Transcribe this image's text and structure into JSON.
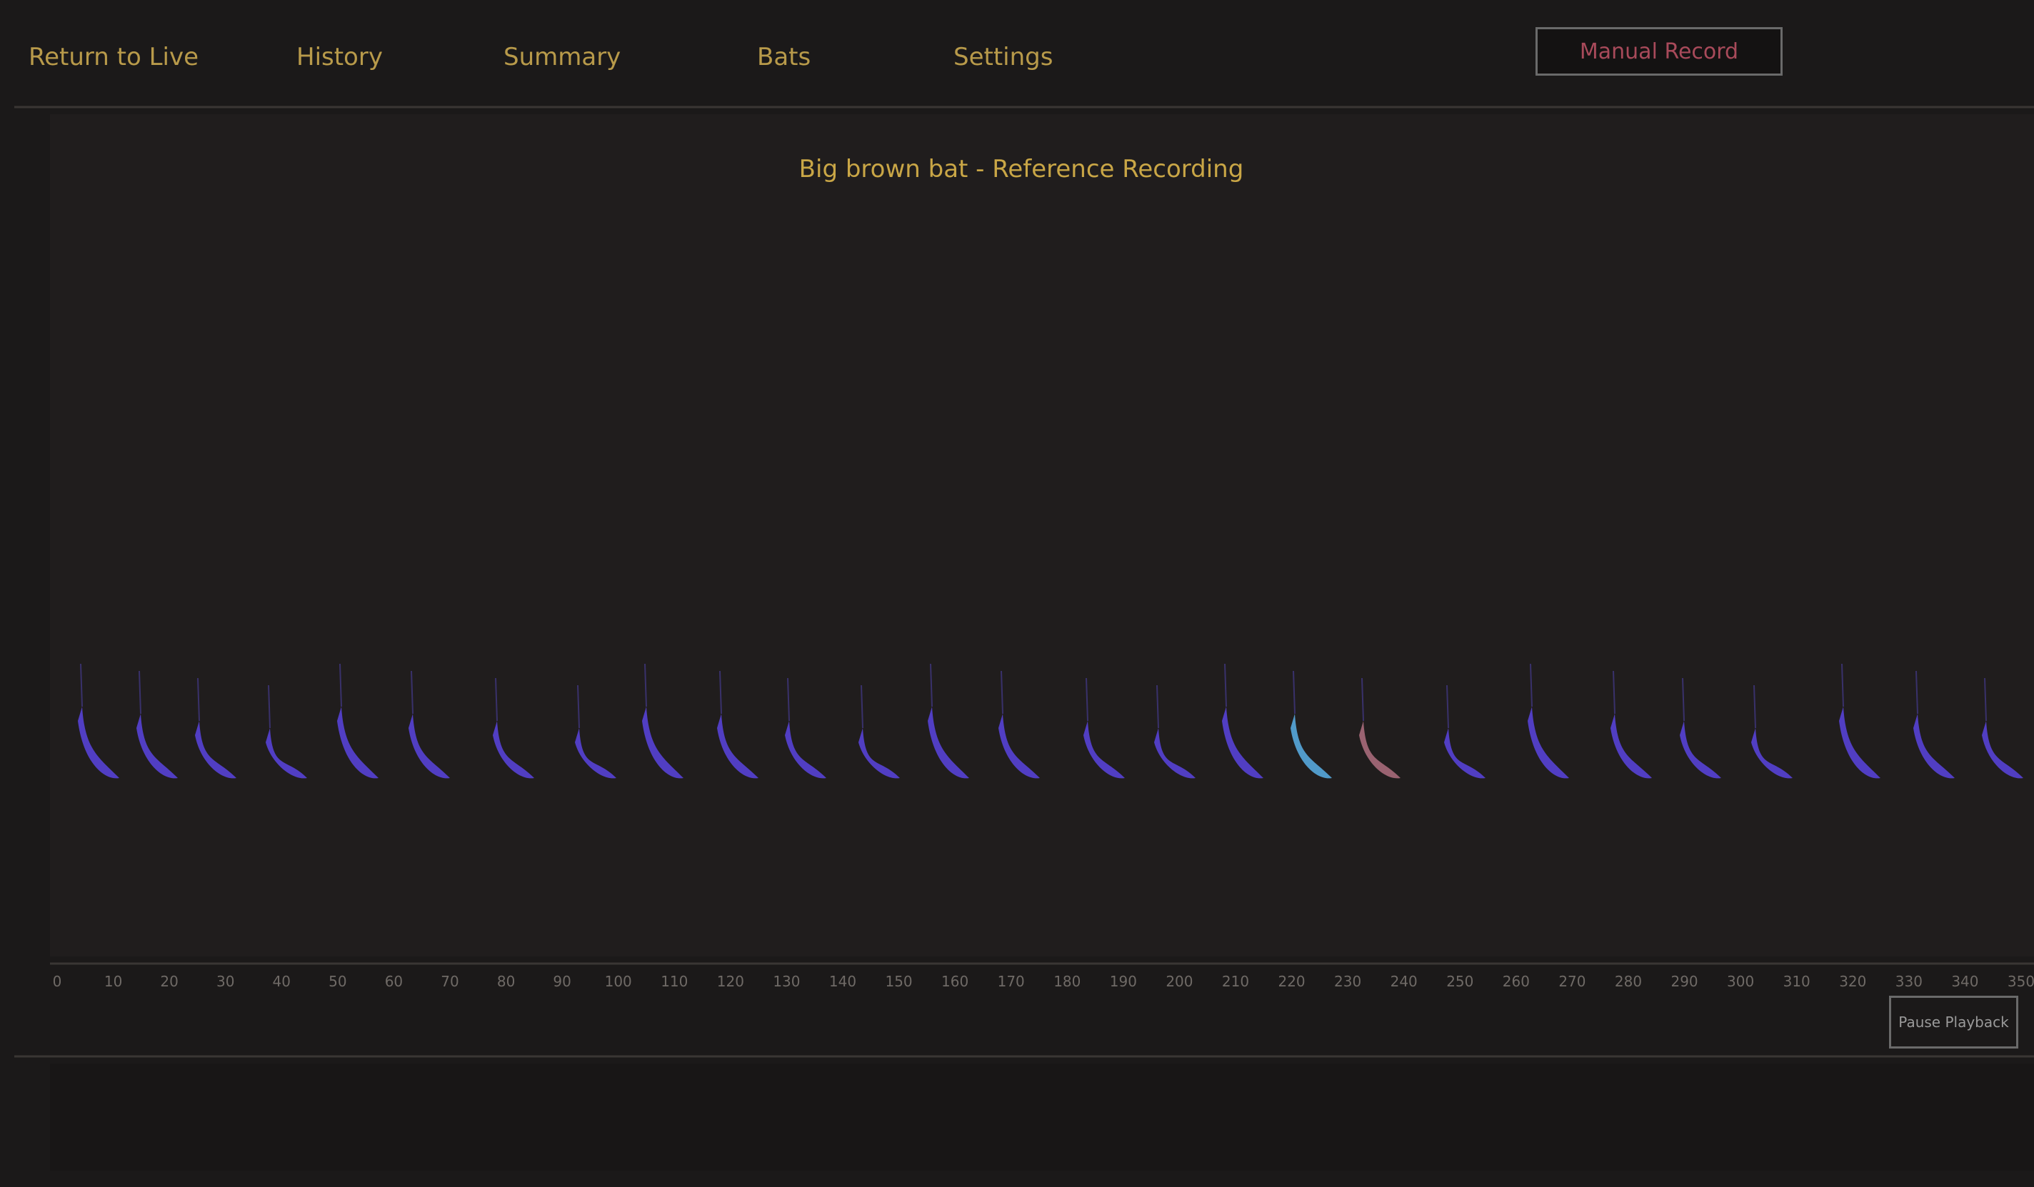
{
  "nav": {
    "items": [
      "Return to Live",
      "History",
      "Summary",
      "Bats",
      "Settings"
    ],
    "record_button": "Manual Record"
  },
  "spectrogram": {
    "title": "Big brown bat - Reference Recording",
    "time_labels": [
      "0",
      "10",
      "20",
      "30",
      "40",
      "50",
      "60",
      "70",
      "80",
      "90",
      "100",
      "110",
      "120",
      "130",
      "140",
      "150",
      "160",
      "170",
      "180",
      "190",
      "200",
      "210",
      "220",
      "230",
      "240",
      "250",
      "260",
      "270",
      "280",
      "290",
      "300",
      "310",
      "320",
      "330",
      "340",
      "350"
    ]
  },
  "playback_button": "Pause Playback"
}
